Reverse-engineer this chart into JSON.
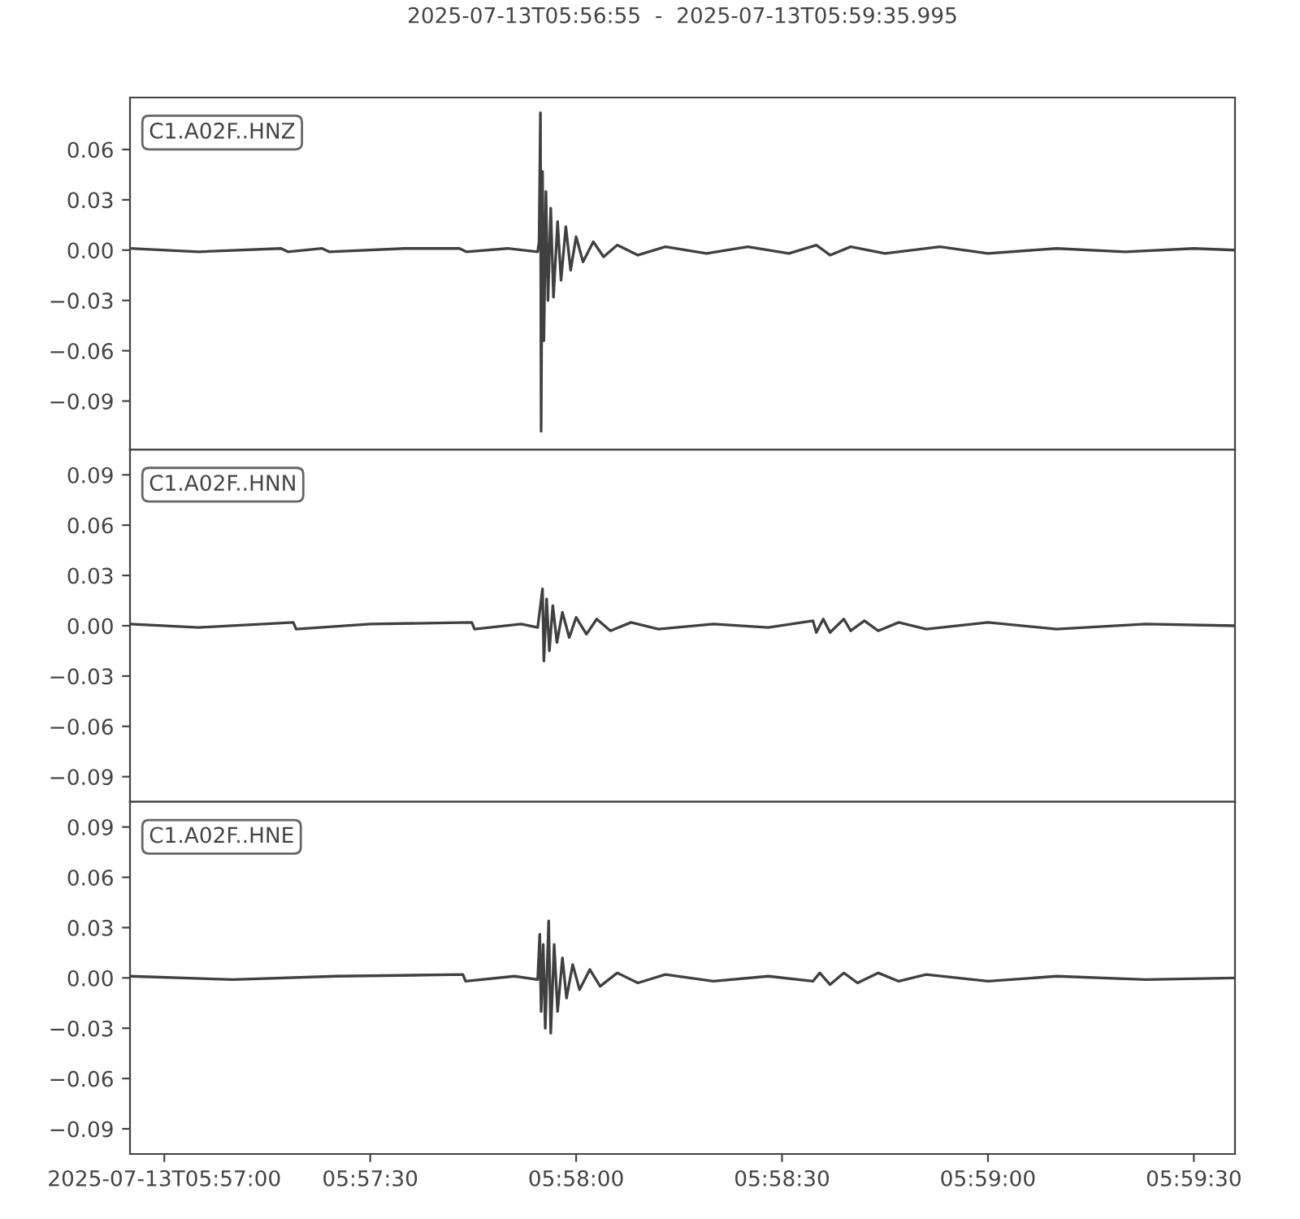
{
  "chart_data": [
    {
      "type": "line",
      "title": "2025-07-13T05:56:55  -  2025-07-13T05:59:35.995",
      "annotations": [
        "C1.A02F..HNZ"
      ],
      "color": "#404040",
      "tick_labels": "y",
      "x": [
        "2025-07-13T05:56:55",
        "2025-07-13T05:57:05",
        "2025-07-13T05:57:17",
        "2025-07-13T05:57:18",
        "2025-07-13T05:57:23",
        "2025-07-13T05:57:24",
        "2025-07-13T05:57:35",
        "2025-07-13T05:57:43",
        "2025-07-13T05:57:44",
        "2025-07-13T05:57:50",
        "2025-07-13T05:57:54.4",
        "2025-07-13T05:57:54.6",
        "2025-07-13T05:57:54.8",
        "2025-07-13T05:57:54.9",
        "2025-07-13T05:57:55.1",
        "2025-07-13T05:57:55.3",
        "2025-07-13T05:57:55.6",
        "2025-07-13T05:57:55.9",
        "2025-07-13T05:57:56.3",
        "2025-07-13T05:57:56.7",
        "2025-07-13T05:57:57.3",
        "2025-07-13T05:57:57.8",
        "2025-07-13T05:57:58.5",
        "2025-07-13T05:57:59.2",
        "2025-07-13T05:58:00",
        "2025-07-13T05:58:01",
        "2025-07-13T05:58:02.5",
        "2025-07-13T05:58:04",
        "2025-07-13T05:58:06",
        "2025-07-13T05:58:09",
        "2025-07-13T05:58:13",
        "2025-07-13T05:58:19",
        "2025-07-13T05:58:25",
        "2025-07-13T05:58:31",
        "2025-07-13T05:58:35",
        "2025-07-13T05:58:37",
        "2025-07-13T05:58:40",
        "2025-07-13T05:58:45",
        "2025-07-13T05:58:53",
        "2025-07-13T05:59:00",
        "2025-07-13T05:59:10",
        "2025-07-13T05:59:20",
        "2025-07-13T05:59:30",
        "2025-07-13T05:59:35.995"
      ],
      "values": [
        0.001,
        -0.001,
        0.001,
        -0.001,
        0.001,
        -0.001,
        0.001,
        0.001,
        -0.001,
        0.001,
        -0.001,
        0.005,
        0.082,
        -0.108,
        0.047,
        -0.054,
        0.035,
        -0.03,
        0.025,
        -0.028,
        0.017,
        -0.018,
        0.014,
        -0.012,
        0.008,
        -0.007,
        0.005,
        -0.004,
        0.003,
        -0.003,
        0.002,
        -0.002,
        0.002,
        -0.002,
        0.003,
        -0.003,
        0.002,
        -0.002,
        0.002,
        -0.002,
        0.001,
        -0.001,
        0.001,
        0
      ],
      "xlim": [
        "2025-07-13T05:56:55",
        "2025-07-13T05:59:35.995"
      ],
      "ylim": [
        -0.119,
        0.091
      ],
      "yticks": [
        {
          "value": -0.09,
          "label": "−0.09"
        },
        {
          "value": -0.06,
          "label": "−0.06"
        },
        {
          "value": -0.03,
          "label": "−0.03"
        },
        {
          "value": 0,
          "label": "0.00"
        },
        {
          "value": 0.03,
          "label": "0.03"
        },
        {
          "value": 0.06,
          "label": "0.06"
        }
      ]
    },
    {
      "type": "line",
      "annotations": [
        "C1.A02F..HNN"
      ],
      "color": "#404040",
      "tick_labels": "y",
      "x": [
        "2025-07-13T05:56:55",
        "2025-07-13T05:57:05",
        "2025-07-13T05:57:18.8",
        "2025-07-13T05:57:19.2",
        "2025-07-13T05:57:30",
        "2025-07-13T05:57:44.8",
        "2025-07-13T05:57:45.2",
        "2025-07-13T05:57:52",
        "2025-07-13T05:57:54.4",
        "2025-07-13T05:57:54.8",
        "2025-07-13T05:57:55.1",
        "2025-07-13T05:57:55.3",
        "2025-07-13T05:57:55.7",
        "2025-07-13T05:57:56.1",
        "2025-07-13T05:57:56.6",
        "2025-07-13T05:57:57.2",
        "2025-07-13T05:57:58",
        "2025-07-13T05:57:59",
        "2025-07-13T05:58:00",
        "2025-07-13T05:58:01.5",
        "2025-07-13T05:58:03",
        "2025-07-13T05:58:05",
        "2025-07-13T05:58:08",
        "2025-07-13T05:58:12",
        "2025-07-13T05:58:20",
        "2025-07-13T05:58:28",
        "2025-07-13T05:58:34.5",
        "2025-07-13T05:58:35",
        "2025-07-13T05:58:36",
        "2025-07-13T05:58:37",
        "2025-07-13T05:58:39",
        "2025-07-13T05:58:40",
        "2025-07-13T05:58:42",
        "2025-07-13T05:58:44",
        "2025-07-13T05:58:47",
        "2025-07-13T05:58:51",
        "2025-07-13T05:59:00",
        "2025-07-13T05:59:10",
        "2025-07-13T05:59:23",
        "2025-07-13T05:59:35.995"
      ],
      "values": [
        0.001,
        -0.001,
        0.002,
        -0.002,
        0.001,
        0.002,
        -0.002,
        0.001,
        -0.001,
        0.012,
        0.022,
        -0.021,
        0.016,
        -0.015,
        0.012,
        -0.01,
        0.008,
        -0.007,
        0.005,
        -0.005,
        0.004,
        -0.003,
        0.002,
        -0.002,
        0.001,
        -0.001,
        0.003,
        -0.004,
        0.004,
        -0.004,
        0.004,
        -0.003,
        0.003,
        -0.003,
        0.002,
        -0.002,
        0.002,
        -0.002,
        0.001,
        0
      ],
      "xlim": [
        "2025-07-13T05:56:55",
        "2025-07-13T05:59:35.995"
      ],
      "ylim": [
        -0.105,
        0.105
      ],
      "yticks": [
        {
          "value": -0.09,
          "label": "−0.09"
        },
        {
          "value": -0.06,
          "label": "−0.06"
        },
        {
          "value": -0.03,
          "label": "−0.03"
        },
        {
          "value": 0,
          "label": "0.00"
        },
        {
          "value": 0.03,
          "label": "0.03"
        },
        {
          "value": 0.06,
          "label": "0.06"
        },
        {
          "value": 0.09,
          "label": "0.09"
        }
      ]
    },
    {
      "type": "line",
      "annotations": [
        "C1.A02F..HNE"
      ],
      "color": "#404040",
      "x": [
        "2025-07-13T05:56:55",
        "2025-07-13T05:57:10",
        "2025-07-13T05:57:25",
        "2025-07-13T05:57:43.5",
        "2025-07-13T05:57:43.9",
        "2025-07-13T05:57:51",
        "2025-07-13T05:57:54.4",
        "2025-07-13T05:57:54.7",
        "2025-07-13T05:57:54.9",
        "2025-07-13T05:57:55.2",
        "2025-07-13T05:57:55.5",
        "2025-07-13T05:57:56",
        "2025-07-13T05:57:56.3",
        "2025-07-13T05:57:56.8",
        "2025-07-13T05:57:57.3",
        "2025-07-13T05:57:58",
        "2025-07-13T05:57:58.6",
        "2025-07-13T05:57:59.5",
        "2025-07-13T05:58:00.5",
        "2025-07-13T05:58:02",
        "2025-07-13T05:58:03.5",
        "2025-07-13T05:58:06",
        "2025-07-13T05:58:09",
        "2025-07-13T05:58:13",
        "2025-07-13T05:58:20",
        "2025-07-13T05:58:28",
        "2025-07-13T05:58:34.5",
        "2025-07-13T05:58:35.5",
        "2025-07-13T05:58:37",
        "2025-07-13T05:58:39",
        "2025-07-13T05:58:41",
        "2025-07-13T05:58:44",
        "2025-07-13T05:58:47",
        "2025-07-13T05:58:51",
        "2025-07-13T05:59:00",
        "2025-07-13T05:59:10",
        "2025-07-13T05:59:23",
        "2025-07-13T05:59:35.995"
      ],
      "values": [
        0.001,
        -0.001,
        0.001,
        0.002,
        -0.002,
        0.001,
        -0.001,
        0.026,
        -0.02,
        0.02,
        -0.03,
        0.034,
        -0.033,
        0.02,
        -0.02,
        0.012,
        -0.012,
        0.008,
        -0.007,
        0.005,
        -0.005,
        0.003,
        -0.003,
        0.002,
        -0.002,
        0.001,
        -0.002,
        0.003,
        -0.004,
        0.003,
        -0.003,
        0.003,
        -0.002,
        0.002,
        -0.002,
        0.001,
        -0.001,
        0
      ],
      "xlim": [
        "2025-07-13T05:56:55",
        "2025-07-13T05:59:35.995"
      ],
      "xticks": [
        {
          "value": "2025-07-13T05:57:00",
          "label": "2025-07-13T05:57:00"
        },
        {
          "value": "2025-07-13T05:57:30",
          "label": "05:57:30"
        },
        {
          "value": "2025-07-13T05:58:00",
          "label": "05:58:00"
        },
        {
          "value": "2025-07-13T05:58:30",
          "label": "05:58:30"
        },
        {
          "value": "2025-07-13T05:59:00",
          "label": "05:59:00"
        },
        {
          "value": "2025-07-13T05:59:30",
          "label": "05:59:30"
        }
      ],
      "ylim": [
        -0.105,
        0.105
      ],
      "yticks": [
        {
          "value": -0.09,
          "label": "−0.09"
        },
        {
          "value": -0.06,
          "label": "−0.06"
        },
        {
          "value": -0.03,
          "label": "−0.03"
        },
        {
          "value": 0,
          "label": "0.00"
        },
        {
          "value": 0.03,
          "label": "0.03"
        },
        {
          "value": 0.06,
          "label": "0.06"
        },
        {
          "value": 0.09,
          "label": "0.09"
        }
      ]
    }
  ]
}
